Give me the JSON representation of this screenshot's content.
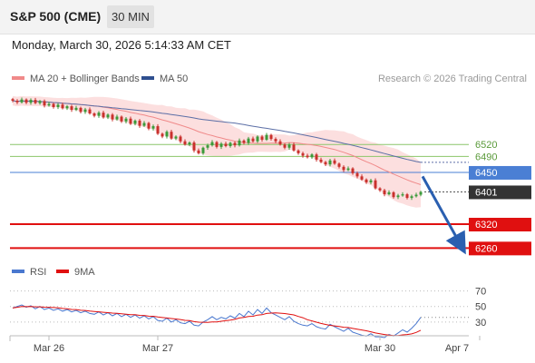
{
  "header": {
    "title": "S&P 500 (CME)",
    "timeframe": "30 MIN"
  },
  "datetime": "Monday, March 30, 2026 5:14:33 AM CET",
  "colors": {
    "candle_up": "#3a9a3a",
    "candle_down": "#c9302c",
    "ma20": "#f08a8a",
    "bollinger_fill": "#fbd9d9",
    "ma50": "#5c6fa6",
    "support": "#e01010",
    "resistance_minor": "#8cc66a",
    "pivot": "#4a7fd4",
    "price_tag": "#333333",
    "rsi": "#4a78cf",
    "rsi_ma": "#e01010",
    "arrow": "#2a5fb0"
  },
  "chart_data": [
    {
      "type": "candlestick",
      "title": "",
      "legend": [
        {
          "name": "MA 20 + Bollinger Bands",
          "color": "#f08a8a"
        },
        {
          "name": "MA 50",
          "color": "#2f4f8f"
        }
      ],
      "source": "Research © 2026 Trading Central",
      "ylim": [
        6238,
        6655
      ],
      "levels": [
        {
          "value": 6520,
          "label": "6520",
          "role": "resistance-minor"
        },
        {
          "value": 6490,
          "label": "6490",
          "role": "resistance-minor"
        },
        {
          "value": 6450,
          "label": "6450",
          "role": "pivot"
        },
        {
          "value": 6401,
          "label": "6401",
          "role": "last-price"
        },
        {
          "value": 6320,
          "label": "6320",
          "role": "support"
        },
        {
          "value": 6260,
          "label": "6260",
          "role": "support"
        }
      ],
      "close": [
        6630,
        6626,
        6633,
        6625,
        6632,
        6624,
        6629,
        6618,
        6622,
        6614,
        6620,
        6611,
        6616,
        6607,
        6612,
        6602,
        6608,
        6598,
        6592,
        6600,
        6588,
        6595,
        6583,
        6590,
        6578,
        6585,
        6572,
        6580,
        6567,
        6574,
        6560,
        6566,
        6547,
        6540,
        6552,
        6535,
        6540,
        6528,
        6520,
        6525,
        6505,
        6498,
        6512,
        6518,
        6526,
        6514,
        6522,
        6516,
        6524,
        6518,
        6530,
        6524,
        6535,
        6528,
        6540,
        6532,
        6544,
        6534,
        6528,
        6520,
        6512,
        6520,
        6505,
        6498,
        6492,
        6488,
        6495,
        6482,
        6476,
        6470,
        6480,
        6472,
        6464,
        6456,
        6460,
        6448,
        6440,
        6432,
        6425,
        6430,
        6410,
        6405,
        6395,
        6400,
        6388,
        6392,
        6395,
        6386,
        6390,
        6394,
        6401
      ],
      "rsi": {
        "ylim": [
          10,
          80
        ],
        "levels": [
          70,
          50,
          30
        ],
        "legend": [
          {
            "name": "RSI",
            "color": "#4a78cf"
          },
          {
            "name": "9MA",
            "color": "#e01010"
          }
        ],
        "values": [
          48,
          50,
          52,
          49,
          51,
          47,
          50,
          46,
          48,
          45,
          47,
          44,
          46,
          43,
          45,
          42,
          44,
          41,
          40,
          43,
          39,
          42,
          38,
          41,
          37,
          40,
          36,
          39,
          35,
          38,
          34,
          37,
          32,
          31,
          35,
          30,
          33,
          29,
          28,
          31,
          26,
          25,
          30,
          33,
          37,
          33,
          36,
          34,
          38,
          35,
          41,
          37,
          44,
          39,
          46,
          41,
          48,
          42,
          39,
          36,
          33,
          37,
          31,
          28,
          26,
          25,
          28,
          24,
          22,
          21,
          27,
          24,
          21,
          18,
          22,
          17,
          15,
          13,
          12,
          15,
          11,
          11,
          10,
          14,
          12,
          16,
          20,
          17,
          22,
          28,
          36
        ]
      },
      "x_ticks": [
        {
          "label": "Mar 26",
          "index": 8
        },
        {
          "label": "Mar 27",
          "index": 32
        },
        {
          "label": "Mar 30",
          "index": 81
        },
        {
          "label": "Apr 7",
          "index": 103
        }
      ],
      "forecast_arrow": {
        "from_value": 6440,
        "to_value": 6268
      }
    }
  ]
}
